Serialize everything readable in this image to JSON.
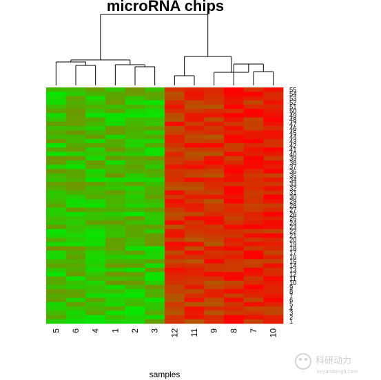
{
  "chart_data": {
    "type": "heatmap",
    "title": "microRNA chips",
    "xlabel": "samples",
    "ylabel": "",
    "columns": [
      "5",
      "6",
      "4",
      "1",
      "2",
      "3",
      "12",
      "11",
      "9",
      "8",
      "7",
      "10"
    ],
    "rows": [
      "55",
      "54",
      "53",
      "52",
      "51",
      "50",
      "49",
      "48",
      "47",
      "46",
      "45",
      "44",
      "43",
      "42",
      "41",
      "40",
      "39",
      "38",
      "37",
      "36",
      "35",
      "34",
      "33",
      "32",
      "31",
      "30",
      "29",
      "28",
      "27",
      "26",
      "25",
      "24",
      "23",
      "22",
      "21",
      "20",
      "19",
      "18",
      "17",
      "16",
      "15",
      "14",
      "13",
      "12",
      "11",
      "10",
      "9",
      "8",
      "7",
      "6",
      "5",
      "4",
      "3",
      "2",
      "1"
    ],
    "color_low": "#00ff00",
    "color_high": "#ff0000",
    "column_dendrogram": {
      "clusters": [
        {
          "name": "left",
          "members": [
            "5",
            "6",
            "4",
            "1",
            "2",
            "3"
          ]
        },
        {
          "name": "right",
          "members": [
            "12",
            "11",
            "9",
            "8",
            "7",
            "10"
          ]
        }
      ]
    }
  },
  "watermark": {
    "text": "科研动力",
    "subtext": "keyandongli.com"
  }
}
